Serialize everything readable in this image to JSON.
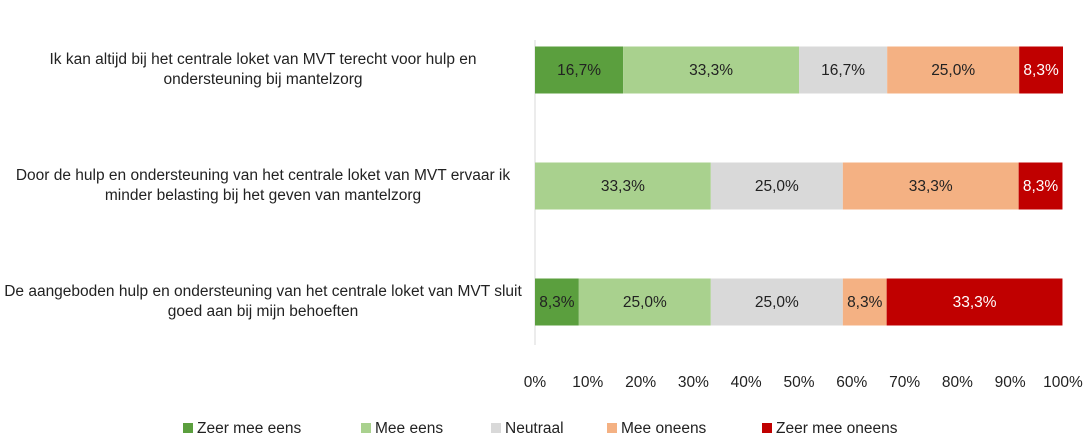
{
  "chart_data": {
    "type": "stacked_barh",
    "categories": [
      "Ik kan altijd bij het centrale loket van MVT terecht voor hulp en ondersteuning bij mantelzorg",
      "Door de hulp en ondersteuning van het centrale loket van MVT ervaar ik minder belasting bij het geven van mantelzorg",
      "De aangeboden hulp en ondersteuning van het centrale loket van MVT sluit goed aan bij mijn behoeften"
    ],
    "series": [
      {
        "name": "Zeer mee eens",
        "color": "#5b9f3e",
        "values": [
          16.7,
          0,
          8.3
        ],
        "value_labels": [
          "16,7%",
          null,
          "8,3%"
        ]
      },
      {
        "name": "Mee eens",
        "color": "#a9d18e",
        "values": [
          33.3,
          33.3,
          25.0
        ],
        "value_labels": [
          "33,3%",
          "33,3%",
          "25,0%"
        ]
      },
      {
        "name": "Neutraal",
        "color": "#d9d9d9",
        "values": [
          16.7,
          25.0,
          25.0
        ],
        "value_labels": [
          "16,7%",
          "25,0%",
          "25,0%"
        ]
      },
      {
        "name": "Mee oneens",
        "color": "#f4b183",
        "values": [
          25.0,
          33.3,
          8.3
        ],
        "value_labels": [
          "25,0%",
          "33,3%",
          "8,3%"
        ]
      },
      {
        "name": "Zeer mee oneens",
        "color": "#c00000",
        "values": [
          8.3,
          8.3,
          33.3
        ],
        "value_labels": [
          "8,3%",
          "8,3%",
          "33,3%"
        ]
      }
    ],
    "xlim": [
      0,
      100
    ],
    "xticks": [
      {
        "value": 0,
        "label": "0%"
      },
      {
        "value": 10,
        "label": "10%"
      },
      {
        "value": 20,
        "label": "20%"
      },
      {
        "value": 30,
        "label": "30%"
      },
      {
        "value": 40,
        "label": "40%"
      },
      {
        "value": 50,
        "label": "50%"
      },
      {
        "value": 60,
        "label": "60%"
      },
      {
        "value": 70,
        "label": "70%"
      },
      {
        "value": 80,
        "label": "80%"
      },
      {
        "value": 90,
        "label": "90%"
      },
      {
        "value": 100,
        "label": "100%"
      }
    ],
    "legend": "bottom"
  }
}
